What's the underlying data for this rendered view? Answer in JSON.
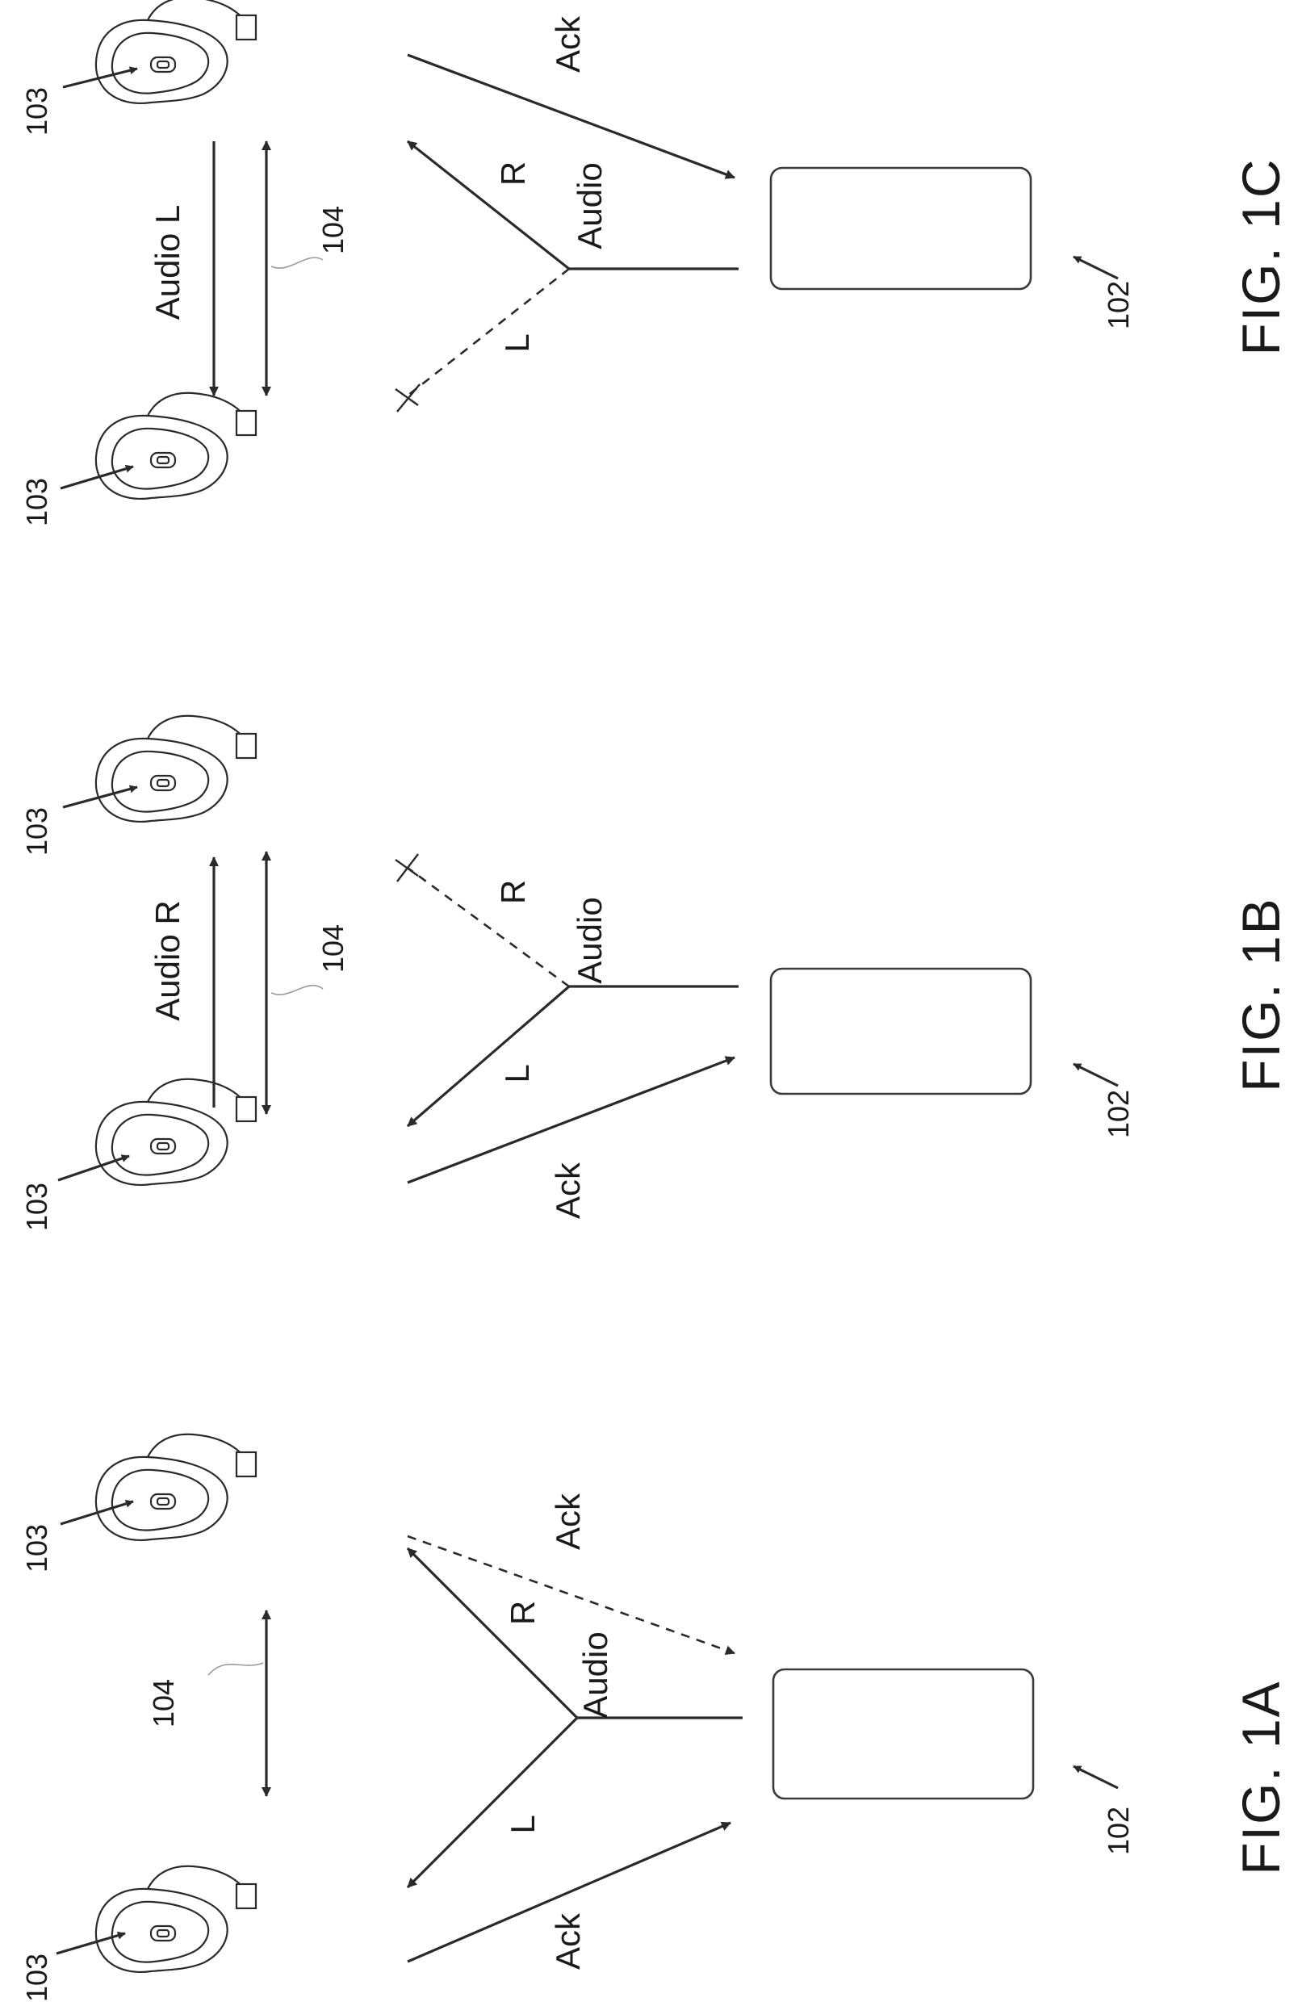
{
  "figure_1a": {
    "caption": "FIG. 1A",
    "ref_hearing_aid_left": "103",
    "ref_hearing_aid_right": "103",
    "ref_link": "104",
    "ref_source": "102",
    "label_audio": "Audio",
    "label_l": "L",
    "label_r": "R",
    "label_ack_left": "Ack",
    "label_ack_right": "Ack"
  },
  "figure_1b": {
    "caption": "FIG. 1B",
    "ref_hearing_aid_left": "103",
    "ref_hearing_aid_right": "103",
    "ref_link": "104",
    "ref_source": "102",
    "label_relay": "Audio R",
    "label_audio": "Audio",
    "label_l": "L",
    "label_r": "R",
    "label_ack": "Ack"
  },
  "figure_1c": {
    "caption": "FIG. 1C",
    "ref_hearing_aid_left": "103",
    "ref_hearing_aid_right": "103",
    "ref_link": "104",
    "ref_source": "102",
    "label_relay": "Audio L",
    "label_audio": "Audio",
    "label_l": "L",
    "label_r": "R",
    "label_ack": "Ack"
  }
}
